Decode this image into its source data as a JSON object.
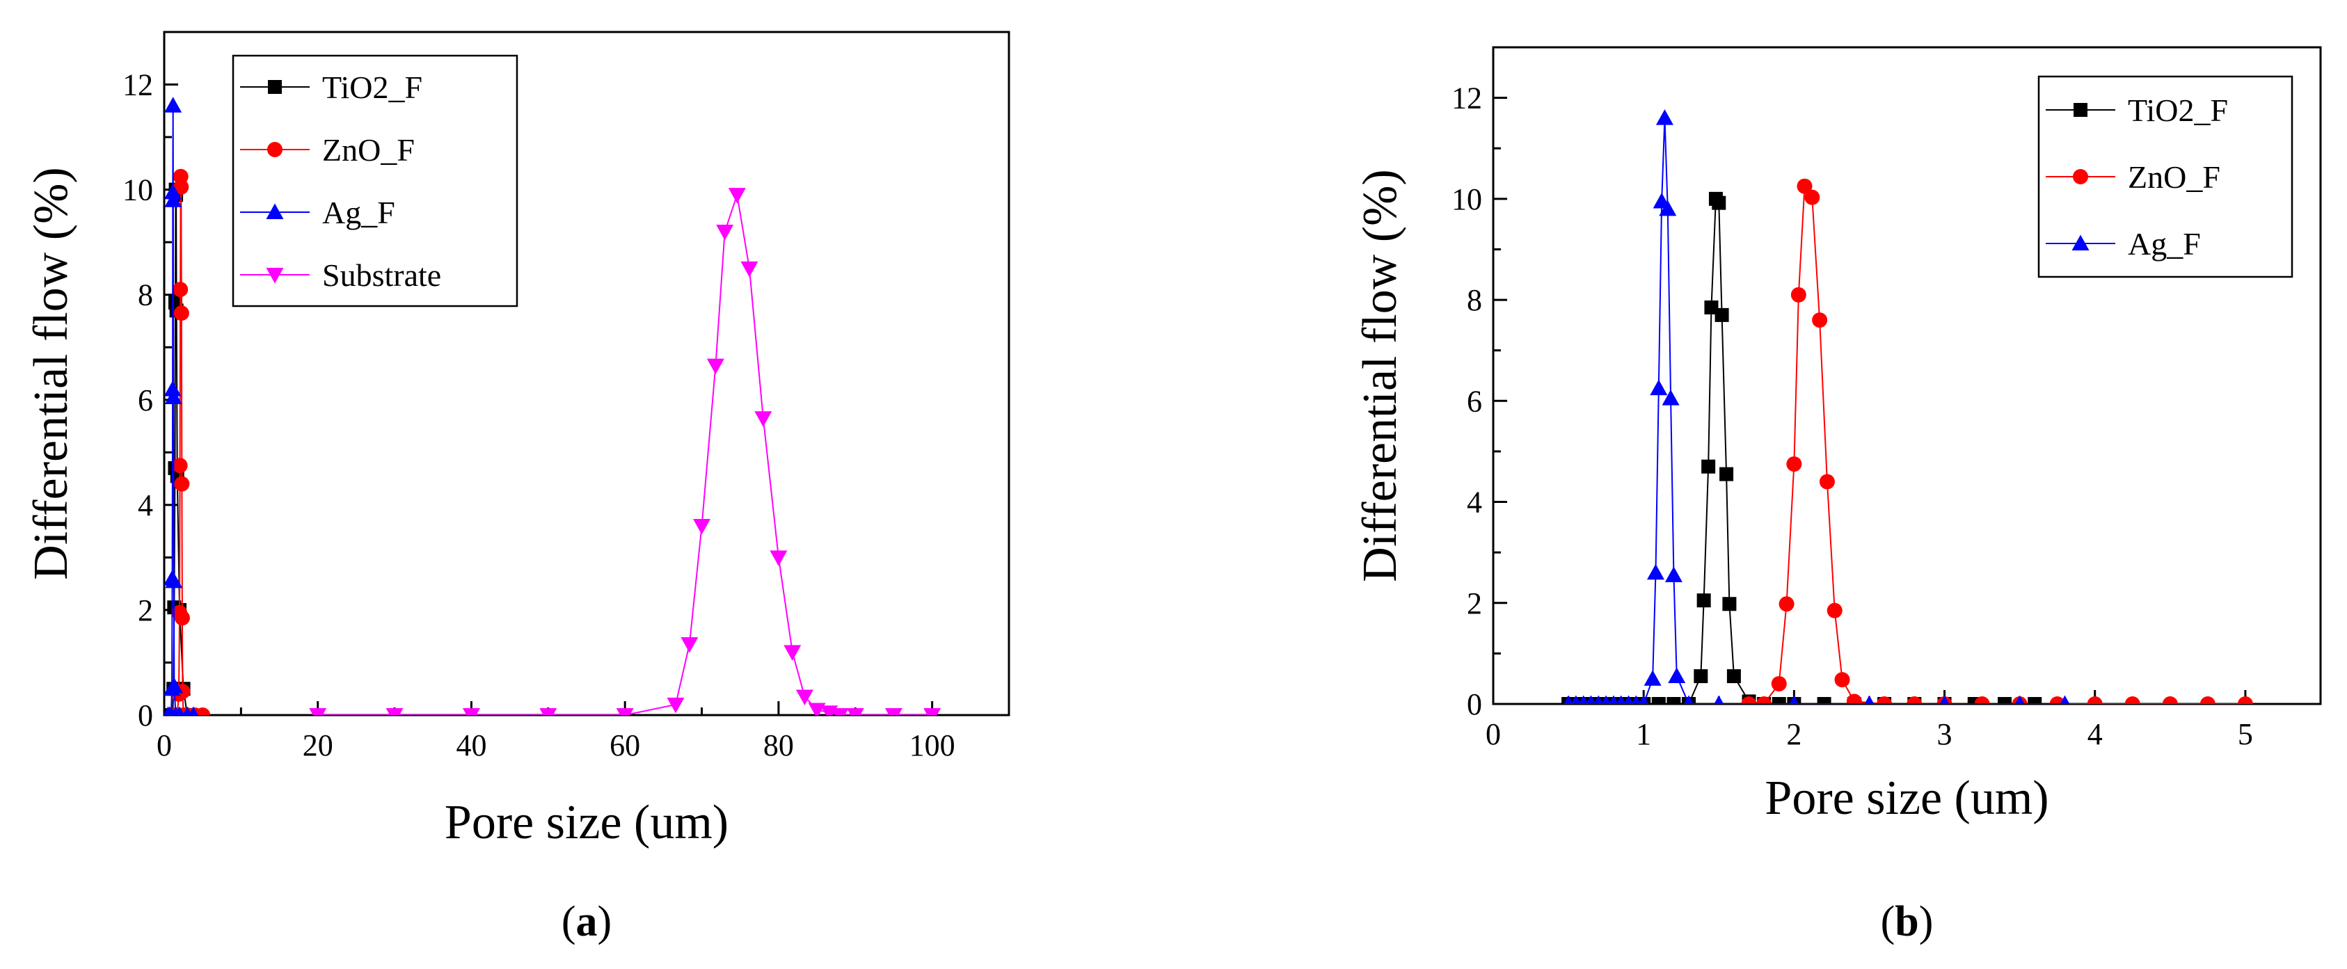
{
  "chart_data": [
    {
      "type": "line",
      "panel": "a",
      "panel_label": {
        "open": "(",
        "letter": "a",
        "close": ")"
      },
      "xlabel": "Pore size (um)",
      "ylabel": "Differential flow (%)",
      "xlim": [
        0,
        110
      ],
      "ylim": [
        0,
        13
      ],
      "xticks": [
        0,
        20,
        40,
        60,
        80,
        100
      ],
      "yticks": [
        0,
        2,
        4,
        6,
        8,
        10,
        12
      ],
      "legend_position": "top-left",
      "series": [
        {
          "name": "TiO2_F",
          "color": "#000000",
          "marker": "square",
          "x": [
            0.5,
            0.7,
            0.9,
            1.1,
            1.2,
            1.3,
            1.4,
            1.45,
            1.5,
            1.55,
            1.6,
            1.7,
            2.0,
            2.5,
            3.0,
            3.5
          ],
          "y": [
            0,
            0,
            0,
            0,
            0.5,
            2.05,
            4.7,
            7.85,
            10.0,
            9.9,
            7.7,
            4.55,
            2.0,
            0.5,
            0,
            0
          ]
        },
        {
          "name": "ZnO_F",
          "color": "#ff0000",
          "marker": "circle",
          "x": [
            1.5,
            1.7,
            1.9,
            2.0,
            2.05,
            2.1,
            2.15,
            2.2,
            2.25,
            2.3,
            2.35,
            2.4,
            2.5,
            3.0,
            4.0,
            5.0
          ],
          "y": [
            0,
            0,
            0.4,
            1.95,
            4.75,
            8.1,
            10.25,
            10.05,
            7.65,
            4.4,
            1.85,
            0.45,
            0,
            0,
            0,
            0
          ]
        },
        {
          "name": "Ag_F",
          "color": "#0000ff",
          "marker": "triangle-up",
          "x": [
            0.5,
            0.7,
            0.9,
            1.0,
            1.05,
            1.1,
            1.12,
            1.15,
            1.17,
            1.2,
            1.25,
            1.3,
            1.5,
            2.0,
            3.0,
            3.8
          ],
          "y": [
            0,
            0,
            0,
            0.5,
            2.6,
            6.2,
            9.95,
            11.6,
            9.8,
            6.05,
            2.55,
            0.55,
            0,
            0,
            0,
            0
          ]
        },
        {
          "name": "Substrate",
          "color": "#ff00ff",
          "marker": "triangle-down",
          "x": [
            20,
            30,
            40,
            50,
            60,
            66.6,
            68.4,
            70.0,
            71.8,
            73.0,
            74.6,
            76.2,
            78.0,
            80.0,
            81.8,
            83.4,
            85.0,
            86.6,
            88.0,
            90,
            95,
            100
          ],
          "y": [
            0,
            0,
            0,
            0,
            0,
            0.2,
            1.35,
            3.6,
            6.65,
            9.2,
            9.9,
            8.5,
            5.65,
            3.0,
            1.2,
            0.35,
            0.1,
            0.05,
            0,
            0,
            0,
            0
          ]
        }
      ]
    },
    {
      "type": "line",
      "panel": "b",
      "panel_label": {
        "open": "(",
        "letter": "b",
        "close": ")"
      },
      "xlabel": "Pore size (um)",
      "ylabel": "Differential flow (%)",
      "xlim": [
        0,
        5.5
      ],
      "ylim": [
        0,
        13
      ],
      "xticks": [
        0,
        1,
        2,
        3,
        4,
        5
      ],
      "yticks": [
        0,
        2,
        4,
        6,
        8,
        10,
        12
      ],
      "legend_position": "top-right",
      "series": [
        {
          "name": "TiO2_F",
          "color": "#000000",
          "marker": "square",
          "x": [
            0.5,
            0.6,
            0.7,
            0.8,
            0.9,
            1.0,
            1.1,
            1.2,
            1.3,
            1.38,
            1.4,
            1.43,
            1.45,
            1.48,
            1.5,
            1.52,
            1.55,
            1.57,
            1.6,
            1.7,
            1.8,
            1.9,
            2.0,
            2.2,
            2.4,
            2.6,
            2.8,
            3.0,
            3.2,
            3.4,
            3.6
          ],
          "y": [
            0,
            0,
            0,
            0,
            0,
            0,
            0,
            0,
            0,
            0.55,
            2.05,
            4.7,
            7.85,
            10.0,
            9.92,
            7.7,
            4.55,
            1.98,
            0.55,
            0.05,
            0,
            0,
            0,
            0,
            0,
            0,
            0,
            0,
            0,
            0,
            0
          ]
        },
        {
          "name": "ZnO_F",
          "color": "#ff0000",
          "marker": "circle",
          "x": [
            1.7,
            1.8,
            1.9,
            1.95,
            2.0,
            2.03,
            2.07,
            2.12,
            2.17,
            2.22,
            2.27,
            2.32,
            2.4,
            2.6,
            2.8,
            3.0,
            3.25,
            3.5,
            3.75,
            4.0,
            4.25,
            4.5,
            4.75,
            5.0
          ],
          "y": [
            0,
            0,
            0.4,
            1.98,
            4.75,
            8.1,
            10.25,
            10.03,
            7.6,
            4.4,
            1.85,
            0.48,
            0.05,
            0,
            0,
            0,
            0,
            0,
            0,
            0,
            0,
            0,
            0,
            0
          ]
        },
        {
          "name": "Ag_F",
          "color": "#0000ff",
          "marker": "triangle-up",
          "x": [
            0.5,
            0.55,
            0.6,
            0.65,
            0.7,
            0.75,
            0.8,
            0.85,
            0.9,
            0.95,
            1.0,
            1.06,
            1.08,
            1.1,
            1.12,
            1.14,
            1.16,
            1.18,
            1.2,
            1.22,
            1.3,
            1.5,
            2.0,
            2.5,
            3.0,
            3.5,
            3.8
          ],
          "y": [
            0,
            0,
            0,
            0,
            0,
            0,
            0,
            0,
            0,
            0,
            0,
            0.5,
            2.6,
            6.25,
            9.95,
            11.6,
            9.8,
            6.05,
            2.55,
            0.55,
            0,
            0,
            0,
            0,
            0,
            0,
            0
          ]
        }
      ]
    }
  ]
}
